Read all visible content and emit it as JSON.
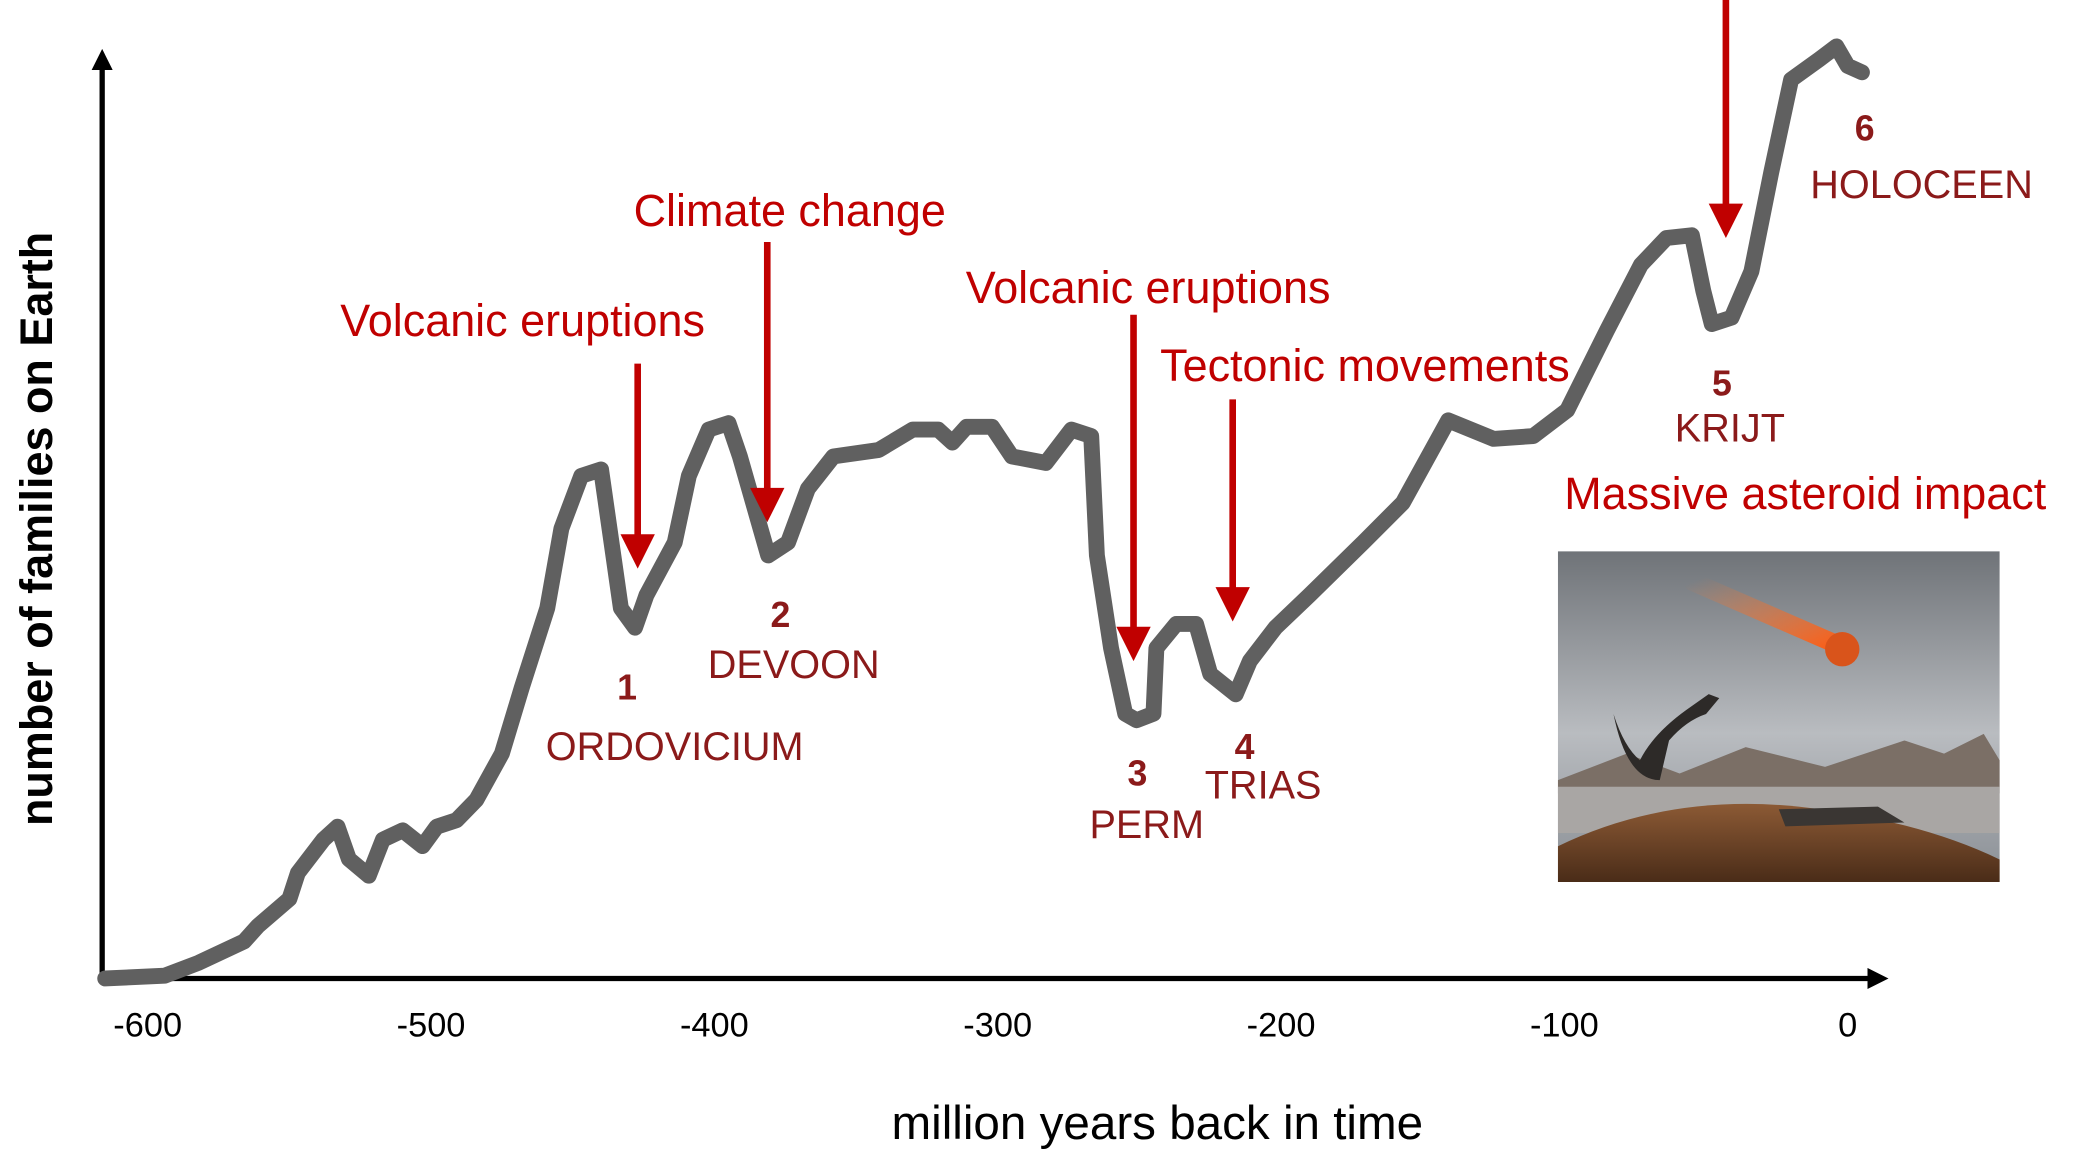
{
  "chart_data": {
    "type": "line",
    "xlabel": "million years back in time",
    "ylabel": "number of families on Earth",
    "xlim": [
      -617,
      13
    ],
    "ylim": [
      0,
      100
    ],
    "xticks": [
      -600,
      -500,
      -400,
      -300,
      -200,
      -100,
      0
    ],
    "series": [
      {
        "color": "#606060",
        "x": [
          -615,
          -594,
          -582,
          -566,
          -561,
          -550,
          -547,
          -538,
          -533,
          -529,
          -522,
          -517,
          -510,
          -503,
          -498,
          -491,
          -484,
          -475,
          -468,
          -459,
          -454,
          -447,
          -440,
          -437,
          -433,
          -428,
          -424,
          -414,
          -409,
          -402,
          -395,
          -391,
          -385,
          -381,
          -374,
          -367,
          -358,
          -342,
          -330,
          -321,
          -316,
          -311,
          -302,
          -295,
          -283,
          -274,
          -267,
          -265,
          -260,
          -255,
          -251,
          -245,
          -244,
          -237,
          -230,
          -225,
          -216,
          -211,
          -202,
          -190,
          -171,
          -157,
          -141,
          -125,
          -111,
          -99,
          -85,
          -73,
          -64,
          -55,
          -51,
          -48,
          -41,
          -34,
          -27,
          -20,
          -10,
          -4,
          0,
          5
        ],
        "values": [
          0,
          0.3,
          1.7,
          4,
          5.7,
          8.6,
          11.4,
          15,
          16.4,
          12.9,
          11.1,
          15,
          16,
          14.3,
          16.4,
          17.1,
          19.3,
          24.3,
          31.4,
          40,
          48.6,
          54.3,
          55,
          48.6,
          40,
          37.9,
          41.4,
          47.1,
          54.3,
          59.3,
          60,
          56.4,
          50,
          45.7,
          47.1,
          52.9,
          56.4,
          57.1,
          59.3,
          59.3,
          57.9,
          59.6,
          59.6,
          56.4,
          55.7,
          59.3,
          58.6,
          45.7,
          35.7,
          28.6,
          27.9,
          28.6,
          35.7,
          38.3,
          38.3,
          32.9,
          30.7,
          34.3,
          37.9,
          41.4,
          47.1,
          51.4,
          60.3,
          58.3,
          58.6,
          61.4,
          70,
          77.1,
          80,
          80.3,
          74.3,
          70.7,
          71.4,
          76.4,
          87.1,
          97.1,
          99.3,
          100.7,
          98.6,
          97.9
        ]
      }
    ],
    "annotation_color": "#c00000",
    "events": [
      {
        "number": "1",
        "name": "ORDOVICIUM",
        "cause": "Volcanic eruptions"
      },
      {
        "number": "2",
        "name": "DEVOON",
        "cause": "Climate change"
      },
      {
        "number": "3",
        "name": "PERM",
        "cause": "Volcanic eruptions"
      },
      {
        "number": "4",
        "name": "TRIAS",
        "cause": "Tectonic movements"
      },
      {
        "number": "5",
        "name": "KRIJT",
        "cause": "Massive asteroid impact"
      },
      {
        "number": "6",
        "name": "HOLOCEEN"
      }
    ]
  }
}
